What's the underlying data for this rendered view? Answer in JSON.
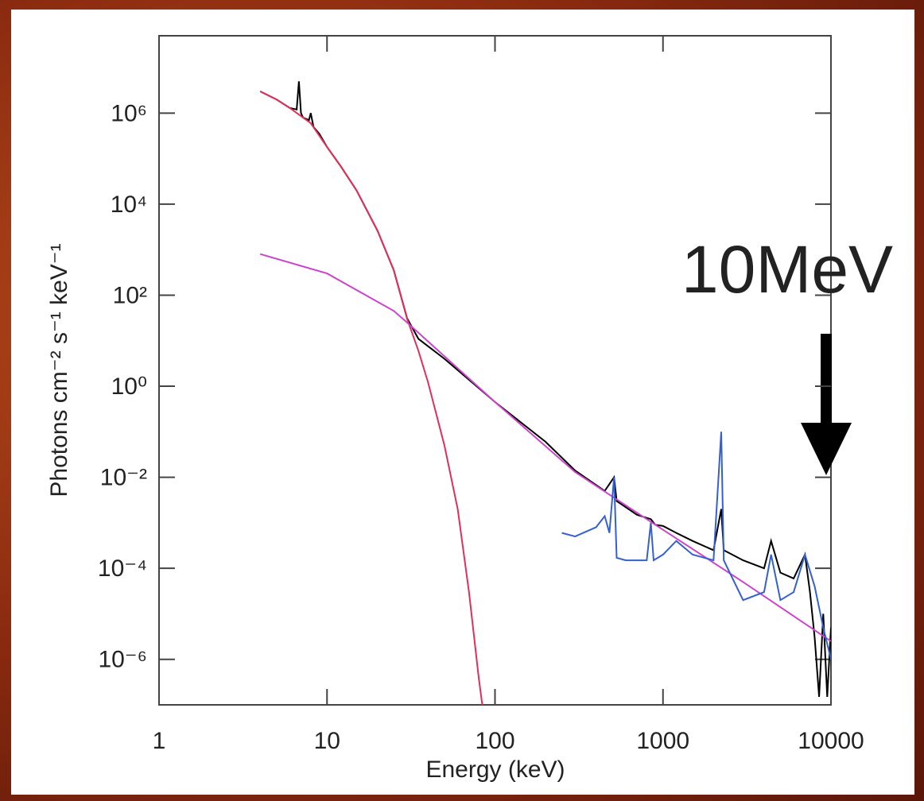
{
  "chart_data": {
    "type": "line",
    "xlabel": "Energy (keV)",
    "ylabel": "Photons cm⁻² s⁻¹ keV⁻¹",
    "annotation": "10MeV",
    "annotation_x": 10000,
    "xscale": "log",
    "yscale": "log",
    "xlim": [
      1,
      10000
    ],
    "ylim": [
      1e-07,
      50000000.0
    ],
    "xticks": [
      1,
      10,
      100,
      1000,
      10000
    ],
    "yticks": [
      {
        "value": 1e-06,
        "label": "10⁻⁶"
      },
      {
        "value": 0.0001,
        "label": "10⁻⁴"
      },
      {
        "value": 0.01,
        "label": "10⁻²"
      },
      {
        "value": 1,
        "label": "10⁰"
      },
      {
        "value": 100,
        "label": "10²"
      },
      {
        "value": 10000,
        "label": "10⁴"
      },
      {
        "value": 1000000,
        "label": "10⁶"
      }
    ],
    "series": [
      {
        "color": "#000000",
        "x": [
          4,
          5,
          6,
          6.6,
          6.8,
          7.0,
          7.2,
          7.8,
          8.0,
          8.3,
          9,
          10,
          12,
          15,
          20,
          25,
          30,
          35,
          50,
          100,
          200,
          300,
          450,
          511,
          530,
          700,
          847,
          900,
          1000,
          1200,
          1500,
          2000,
          2223,
          2300,
          3000,
          4000,
          4400,
          5000,
          6000,
          7000,
          7500,
          8000,
          8500,
          9000,
          9500,
          10000
        ],
        "values": [
          3000000,
          2000000,
          1300000,
          1200000,
          5000000,
          1000000,
          800000,
          700000,
          1000000,
          500000,
          350000,
          180000,
          70000,
          20000,
          2600,
          350,
          31,
          11,
          4,
          0.45,
          0.06,
          0.014,
          0.005,
          0.01,
          0.003,
          0.0015,
          0.0012,
          0.0009,
          0.00085,
          0.0006,
          0.0004,
          0.00025,
          0.002,
          0.00025,
          0.00015,
          0.0001,
          0.0004,
          8e-05,
          6e-05,
          0.0002,
          3e-05,
          3e-06,
          1.5e-07,
          1e-05,
          1.5e-07,
          5e-06
        ]
      },
      {
        "color": "#e0305a",
        "x": [
          4,
          5,
          6,
          8,
          10,
          12,
          15,
          20,
          25,
          30,
          35,
          40,
          50,
          60,
          70,
          80,
          84
        ],
        "values": [
          3000000,
          2000000,
          1300000,
          600000,
          180000,
          70000,
          20000,
          2600,
          350,
          30,
          6,
          1.2,
          0.05,
          0.002,
          3e-05,
          4e-07,
          1e-07
        ]
      },
      {
        "color": "#cc44cc",
        "x": [
          4,
          10,
          25,
          30,
          100,
          300,
          1000,
          3000,
          10000
        ],
        "values": [
          800,
          300,
          45,
          25,
          0.45,
          0.013,
          0.0007,
          5e-05,
          2.5e-06
        ]
      },
      {
        "color": "#3560d0",
        "x": [
          250,
          300,
          400,
          450,
          480,
          511,
          530,
          600,
          800,
          847,
          880,
          1000,
          1200,
          1500,
          2000,
          2223,
          2300,
          3000,
          4000,
          4400,
          5000,
          6000,
          7000,
          8000,
          9000,
          10000
        ],
        "values": [
          0.0006,
          0.0005,
          0.0008,
          0.0014,
          0.0006,
          0.01,
          0.00017,
          0.00015,
          0.00015,
          0.001,
          0.00015,
          0.0002,
          0.0004,
          0.0002,
          0.00015,
          0.1,
          0.00015,
          2e-05,
          3e-05,
          0.0002,
          2e-05,
          3e-05,
          0.0002,
          4e-05,
          5e-06,
          1e-06
        ]
      }
    ]
  }
}
